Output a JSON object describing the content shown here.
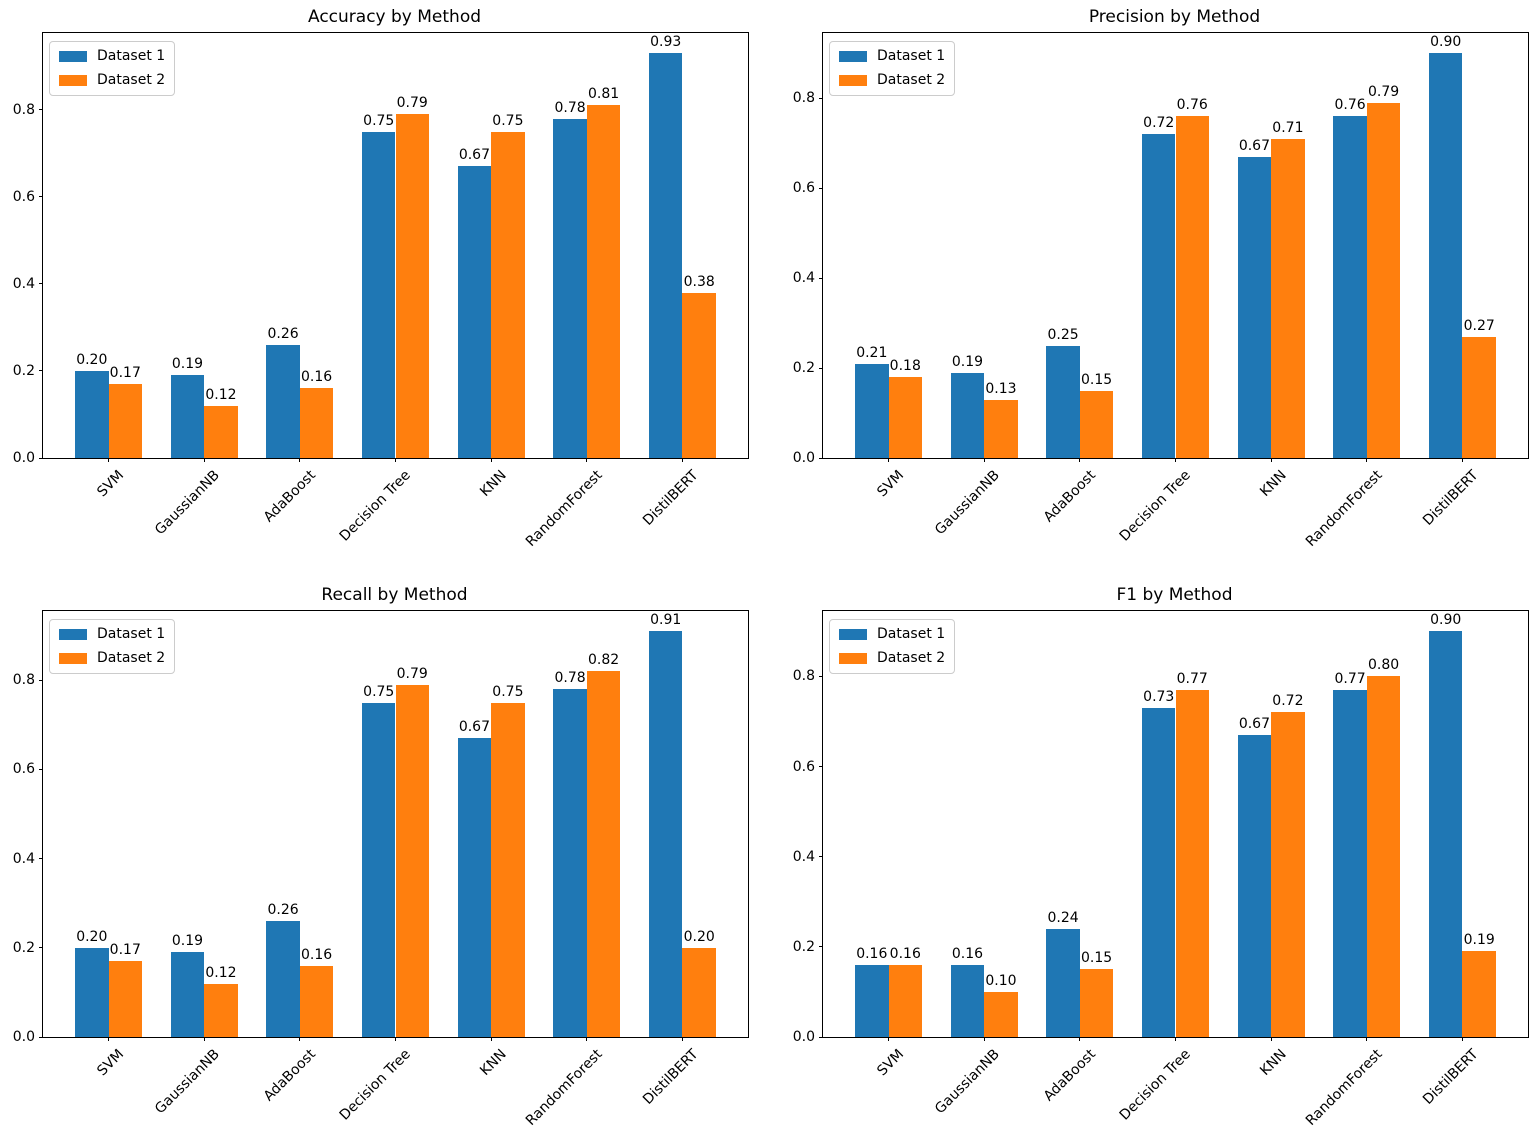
{
  "figure": {
    "background": "#ffffff",
    "text_color": "#000000"
  },
  "legend": {
    "labels": [
      "Dataset 1",
      "Dataset 2"
    ],
    "position": "upper left"
  },
  "colors": {
    "dataset1": "#1f77b4",
    "dataset2": "#ff7f0e",
    "axis": "#000000",
    "legend_border": "#cccccc"
  },
  "chart_data": [
    {
      "type": "bar",
      "title": "Accuracy by Method",
      "xlabel": "",
      "ylabel": "",
      "categories": [
        "SVM",
        "GaussianNB",
        "AdaBoost",
        "Decision Tree",
        "KNN",
        "RandomForest",
        "DistilBERT"
      ],
      "series": [
        {
          "name": "Dataset 1",
          "color": "#1f77b4",
          "values": [
            0.2,
            0.19,
            0.26,
            0.75,
            0.67,
            0.78,
            0.93
          ]
        },
        {
          "name": "Dataset 2",
          "color": "#ff7f0e",
          "values": [
            0.17,
            0.12,
            0.16,
            0.79,
            0.75,
            0.81,
            0.38
          ]
        }
      ],
      "yticks": [
        0.0,
        0.2,
        0.4,
        0.6,
        0.8
      ],
      "ylim": [
        0,
        0.9765
      ],
      "grid": false,
      "legend_position": "upper left",
      "bar_label_format": "2dp"
    },
    {
      "type": "bar",
      "title": "Precision by Method",
      "xlabel": "",
      "ylabel": "",
      "categories": [
        "SVM",
        "GaussianNB",
        "AdaBoost",
        "Decision Tree",
        "KNN",
        "RandomForest",
        "DistilBERT"
      ],
      "series": [
        {
          "name": "Dataset 1",
          "color": "#1f77b4",
          "values": [
            0.21,
            0.19,
            0.25,
            0.72,
            0.67,
            0.76,
            0.9
          ]
        },
        {
          "name": "Dataset 2",
          "color": "#ff7f0e",
          "values": [
            0.18,
            0.13,
            0.15,
            0.76,
            0.71,
            0.79,
            0.27
          ]
        }
      ],
      "yticks": [
        0.0,
        0.2,
        0.4,
        0.6,
        0.8
      ],
      "ylim": [
        0,
        0.945
      ],
      "grid": false,
      "legend_position": "upper left",
      "bar_label_format": "2dp"
    },
    {
      "type": "bar",
      "title": "Recall by Method",
      "xlabel": "",
      "ylabel": "",
      "categories": [
        "SVM",
        "GaussianNB",
        "AdaBoost",
        "Decision Tree",
        "KNN",
        "RandomForest",
        "DistilBERT"
      ],
      "series": [
        {
          "name": "Dataset 1",
          "color": "#1f77b4",
          "values": [
            0.2,
            0.19,
            0.26,
            0.75,
            0.67,
            0.78,
            0.91
          ]
        },
        {
          "name": "Dataset 2",
          "color": "#ff7f0e",
          "values": [
            0.17,
            0.12,
            0.16,
            0.79,
            0.75,
            0.82,
            0.2
          ]
        }
      ],
      "yticks": [
        0.0,
        0.2,
        0.4,
        0.6,
        0.8
      ],
      "ylim": [
        0,
        0.9555
      ],
      "grid": false,
      "legend_position": "upper left",
      "bar_label_format": "2dp"
    },
    {
      "type": "bar",
      "title": "F1 by Method",
      "xlabel": "",
      "ylabel": "",
      "categories": [
        "SVM",
        "GaussianNB",
        "AdaBoost",
        "Decision Tree",
        "KNN",
        "RandomForest",
        "DistilBERT"
      ],
      "series": [
        {
          "name": "Dataset 1",
          "color": "#1f77b4",
          "values": [
            0.16,
            0.16,
            0.24,
            0.73,
            0.67,
            0.77,
            0.9
          ]
        },
        {
          "name": "Dataset 2",
          "color": "#ff7f0e",
          "values": [
            0.16,
            0.1,
            0.15,
            0.77,
            0.72,
            0.8,
            0.19
          ]
        }
      ],
      "yticks": [
        0.0,
        0.2,
        0.4,
        0.6,
        0.8
      ],
      "ylim": [
        0,
        0.945
      ],
      "grid": false,
      "legend_position": "upper left",
      "bar_label_format": "2dp"
    }
  ]
}
